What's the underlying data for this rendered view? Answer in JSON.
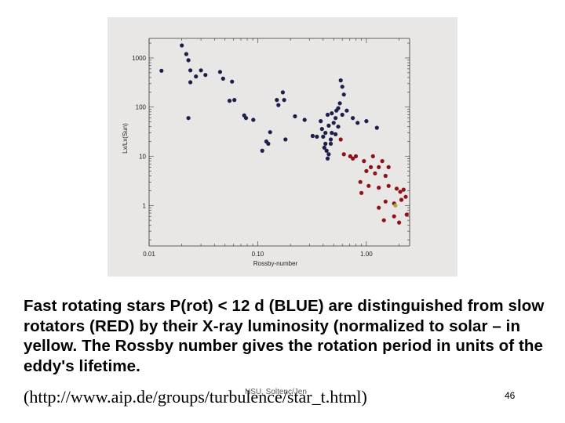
{
  "chart_data": {
    "type": "scatter",
    "title": "",
    "xlabel": "Rossby-number",
    "ylabel": "Lx/Lx(Sun)",
    "xscale": "log",
    "yscale": "log",
    "xlim": [
      0.01,
      2.5
    ],
    "ylim": [
      0.15,
      2500
    ],
    "x_ticks": [
      {
        "value": 0.01,
        "label": "0.01"
      },
      {
        "value": 0.1,
        "label": "0.10"
      },
      {
        "value": 1,
        "label": "1.00"
      }
    ],
    "y_ticks": [
      {
        "value": 1,
        "label": "1"
      },
      {
        "value": 10,
        "label": "10"
      },
      {
        "value": 100,
        "label": "100"
      },
      {
        "value": 1000,
        "label": "1000"
      }
    ],
    "grid": false,
    "colors": {
      "blue": "#1c1f4a",
      "red": "#8e1218",
      "yellow": "#b7a33c",
      "panel": "#e9e7e5"
    },
    "series": [
      {
        "color": "blue",
        "points": [
          [
            0.013,
            550
          ],
          [
            0.02,
            1800
          ],
          [
            0.022,
            1200
          ],
          [
            0.023,
            900
          ],
          [
            0.024,
            560
          ],
          [
            0.024,
            320
          ],
          [
            0.023,
            60
          ],
          [
            0.027,
            420
          ],
          [
            0.03,
            560
          ],
          [
            0.033,
            450
          ],
          [
            0.045,
            520
          ],
          [
            0.048,
            380
          ],
          [
            0.058,
            330
          ],
          [
            0.055,
            135
          ],
          [
            0.061,
            140
          ],
          [
            0.075,
            68
          ],
          [
            0.078,
            60
          ],
          [
            0.091,
            55
          ],
          [
            0.11,
            13
          ],
          [
            0.12,
            20
          ],
          [
            0.125,
            18
          ],
          [
            0.13,
            31
          ],
          [
            0.15,
            140
          ],
          [
            0.155,
            110
          ],
          [
            0.17,
            200
          ],
          [
            0.175,
            140
          ],
          [
            0.18,
            22
          ],
          [
            0.22,
            65
          ],
          [
            0.27,
            55
          ],
          [
            0.32,
            26
          ],
          [
            0.35,
            25
          ],
          [
            0.38,
            52
          ],
          [
            0.39,
            36
          ],
          [
            0.4,
            25
          ],
          [
            0.41,
            15
          ],
          [
            0.42,
            18
          ],
          [
            0.43,
            13
          ],
          [
            0.44,
            9
          ],
          [
            0.45,
            11
          ],
          [
            0.47,
            22
          ],
          [
            0.48,
            30
          ],
          [
            0.5,
            48
          ],
          [
            0.52,
            60
          ],
          [
            0.53,
            85
          ],
          [
            0.55,
            95
          ],
          [
            0.57,
            120
          ],
          [
            0.58,
            350
          ],
          [
            0.6,
            260
          ],
          [
            0.62,
            180
          ],
          [
            0.66,
            85
          ],
          [
            0.45,
            42
          ],
          [
            0.48,
            75
          ],
          [
            0.55,
            40
          ],
          [
            0.6,
            70
          ],
          [
            0.52,
            28
          ],
          [
            0.44,
            70
          ],
          [
            0.42,
            30
          ],
          [
            0.47,
            18
          ],
          [
            0.75,
            60
          ],
          [
            0.83,
            48
          ],
          [
            1.0,
            52
          ],
          [
            1.25,
            38
          ]
        ]
      },
      {
        "color": "red",
        "points": [
          [
            0.58,
            22
          ],
          [
            0.62,
            11
          ],
          [
            0.71,
            10
          ],
          [
            0.75,
            9
          ],
          [
            0.8,
            10
          ],
          [
            0.88,
            3
          ],
          [
            0.9,
            1.8
          ],
          [
            0.95,
            8
          ],
          [
            1.0,
            5
          ],
          [
            1.05,
            2.5
          ],
          [
            1.1,
            6
          ],
          [
            1.15,
            10
          ],
          [
            1.2,
            4.5
          ],
          [
            1.3,
            2.3
          ],
          [
            1.3,
            6
          ],
          [
            1.4,
            8
          ],
          [
            1.5,
            4
          ],
          [
            1.5,
            1.2
          ],
          [
            1.6,
            6
          ],
          [
            1.6,
            2.5
          ],
          [
            1.8,
            1.1
          ],
          [
            1.8,
            0.6
          ],
          [
            1.9,
            2.2
          ],
          [
            2.0,
            0.45
          ],
          [
            2.1,
            1.3
          ],
          [
            2.2,
            2.1
          ],
          [
            2.35,
            0.65
          ],
          [
            2.3,
            1.5
          ],
          [
            1.45,
            0.5
          ],
          [
            1.3,
            0.9
          ],
          [
            2.05,
            1.9
          ]
        ]
      },
      {
        "color": "yellow",
        "points": [
          [
            1.85,
            1.0
          ]
        ]
      }
    ]
  },
  "caption": {
    "text": "Fast rotating stars P(rot) < 12 d (BLUE) are distinguished from slow rotators (RED) by their X-ray luminosity (normalized to solar – in yellow.  The Rossby number gives the rotation period in units of the eddy's lifetime.",
    "url": "(http://www.aip.de/groups/turbulence/star_t.html)",
    "footer_center": "NSU, Soltenc/Jen",
    "page_number": "46"
  }
}
